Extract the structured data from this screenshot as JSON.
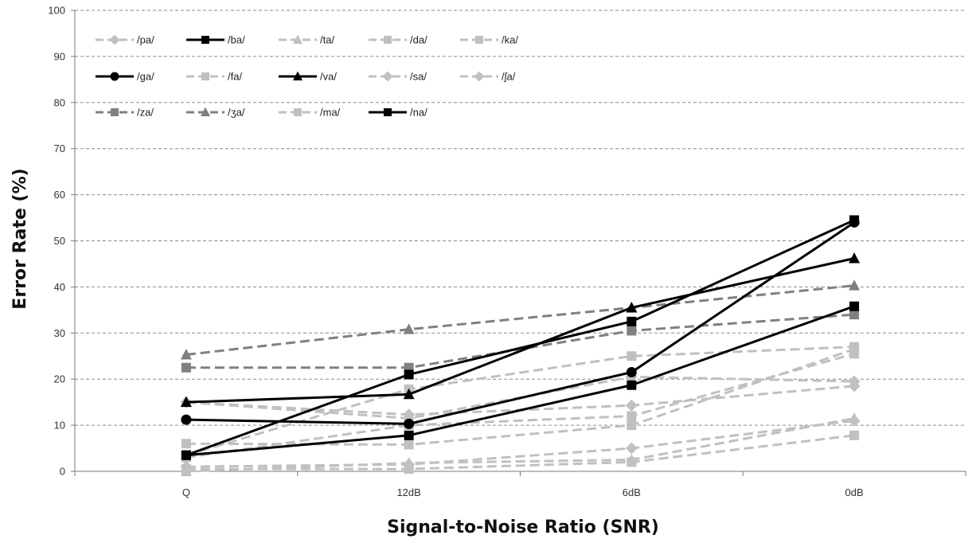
{
  "chart_data": {
    "type": "line",
    "title": "",
    "xlabel": "Signal-to-Noise Ratio (SNR)",
    "ylabel": "Error Rate (%)",
    "categories": [
      "Q",
      "12dB",
      "6dB",
      "0dB"
    ],
    "ylim": [
      0,
      100
    ],
    "yticks": [
      0,
      10,
      20,
      30,
      40,
      50,
      60,
      70,
      80,
      90,
      100
    ],
    "grid": "horizontal dashed",
    "legend": "top-left",
    "series": [
      {
        "name": "/pa/",
        "color": "#c0c0c0",
        "dash": true,
        "marker": "diamond",
        "values": [
          1.0,
          1.5,
          5.0,
          11.0
        ]
      },
      {
        "name": "/ba/",
        "color": "#000000",
        "dash": false,
        "marker": "square",
        "values": [
          3.5,
          21.0,
          32.5,
          54.5
        ]
      },
      {
        "name": "/ta/",
        "color": "#c0c0c0",
        "dash": true,
        "marker": "triangle",
        "values": [
          0.0,
          1.8,
          2.5,
          11.5
        ]
      },
      {
        "name": "/da/",
        "color": "#c0c0c0",
        "dash": true,
        "marker": "square",
        "values": [
          6.0,
          5.8,
          10.0,
          26.5
        ]
      },
      {
        "name": "/ka/",
        "color": "#c0c0c0",
        "dash": true,
        "marker": "square",
        "values": [
          0.5,
          0.5,
          2.0,
          7.8
        ]
      },
      {
        "name": "/ga/",
        "color": "#000000",
        "dash": false,
        "marker": "circle",
        "values": [
          11.2,
          10.3,
          21.5,
          54.0
        ]
      },
      {
        "name": "/fa/",
        "color": "#c0c0c0",
        "dash": true,
        "marker": "square",
        "values": [
          3.5,
          17.8,
          25.0,
          27.0
        ]
      },
      {
        "name": "/va/",
        "color": "#000000",
        "dash": false,
        "marker": "triangle",
        "values": [
          15.0,
          16.7,
          35.5,
          46.2
        ]
      },
      {
        "name": "/sa/",
        "color": "#c0c0c0",
        "dash": true,
        "marker": "diamond",
        "values": [
          15.0,
          12.3,
          14.3,
          18.5
        ]
      },
      {
        "name": "/ʃa/",
        "color": "#c0c0c0",
        "dash": true,
        "marker": "diamond",
        "values": [
          15.0,
          11.5,
          20.5,
          19.5
        ]
      },
      {
        "name": "/za/",
        "color": "#808080",
        "dash": true,
        "marker": "square",
        "values": [
          22.5,
          22.5,
          30.5,
          34.0
        ]
      },
      {
        "name": "/ʒa/",
        "color": "#808080",
        "dash": true,
        "marker": "triangle",
        "values": [
          25.3,
          30.8,
          35.5,
          40.3
        ]
      },
      {
        "name": "/ma/",
        "color": "#c0c0c0",
        "dash": true,
        "marker": "square",
        "values": [
          3.0,
          10.0,
          12.0,
          25.5
        ]
      },
      {
        "name": "/na/",
        "color": "#000000",
        "dash": false,
        "marker": "square",
        "values": [
          3.5,
          7.8,
          18.7,
          35.8
        ]
      }
    ]
  }
}
